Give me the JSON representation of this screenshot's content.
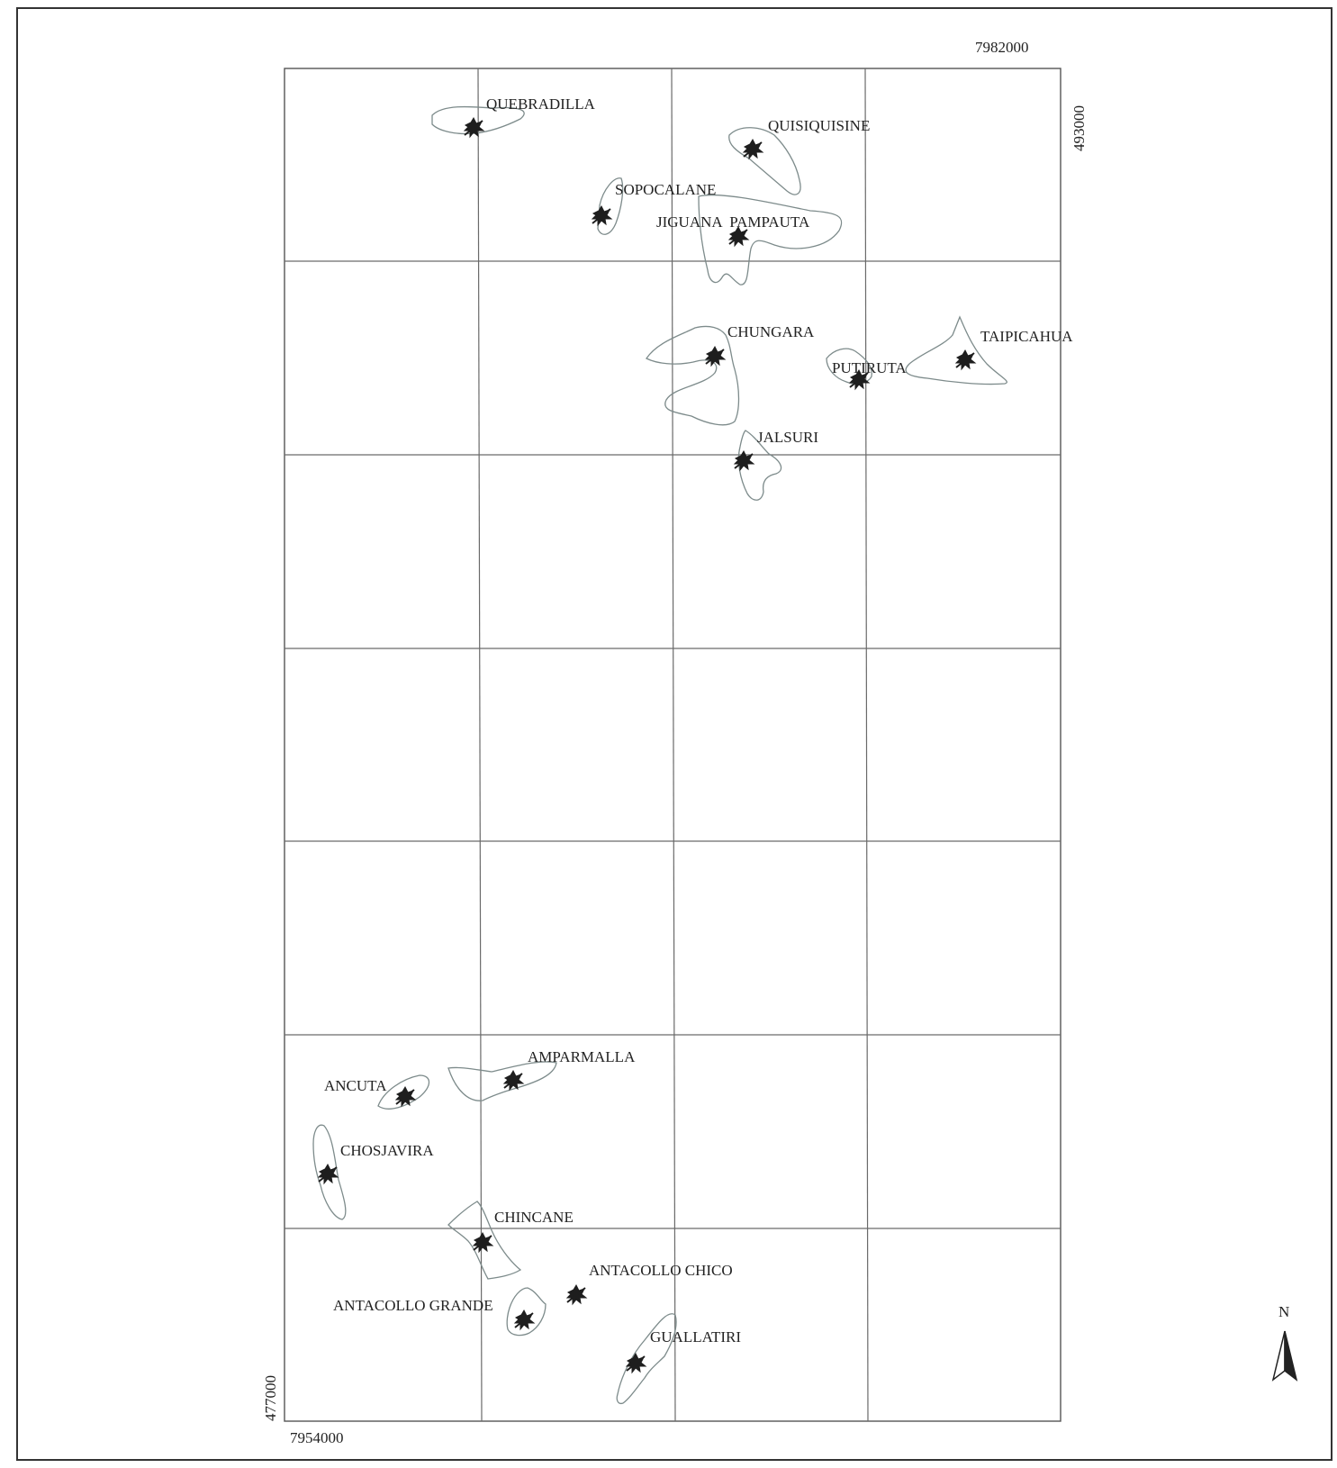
{
  "map": {
    "coordinates": {
      "top_right_northing": "7982000",
      "right_easting": "493000",
      "bottom_left_northing": "7954000",
      "left_easting": "477000"
    },
    "north_arrow_label": "N",
    "places": [
      {
        "id": "quebradilla",
        "label": "QUEBRADILLA"
      },
      {
        "id": "quisiquisine",
        "label": "QUISIQUISINE"
      },
      {
        "id": "sopocalane",
        "label": "SOPOCALANE"
      },
      {
        "id": "jiguana-pampauta",
        "label": "JIGUANA  PAMPAUTA"
      },
      {
        "id": "chungara",
        "label": "CHUNGARA"
      },
      {
        "id": "taipicahua",
        "label": "TAIPICAHUA"
      },
      {
        "id": "putiruta",
        "label": "PUTIRUTA"
      },
      {
        "id": "jalsuri",
        "label": "JALSURI"
      },
      {
        "id": "amparmalla",
        "label": "AMPARMALLA"
      },
      {
        "id": "ancuta",
        "label": "ANCUTA"
      },
      {
        "id": "chosjavira",
        "label": "CHOSJAVIRA"
      },
      {
        "id": "chincane",
        "label": "CHINCANE"
      },
      {
        "id": "antacollo-chico",
        "label": "ANTACOLLO CHICO"
      },
      {
        "id": "antacollo-grande",
        "label": "ANTACOLLO GRANDE"
      },
      {
        "id": "guallatiri",
        "label": "GUALLATIRI"
      }
    ]
  }
}
